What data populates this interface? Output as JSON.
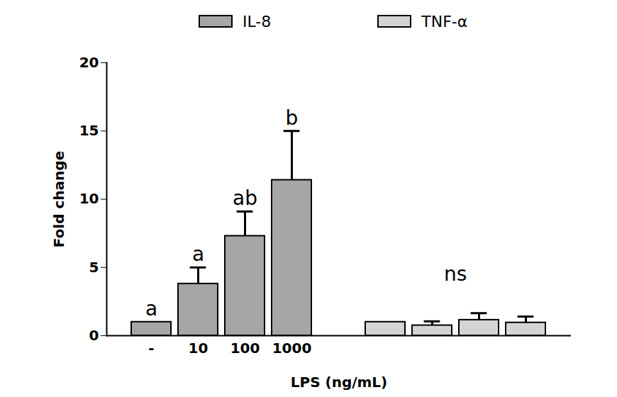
{
  "chart_data": {
    "type": "bar",
    "x_label": "LPS (ng/mL)",
    "y_label": "Fold change",
    "categories": [
      "-",
      "10",
      "100",
      "1000"
    ],
    "series": [
      {
        "name": "IL-8",
        "color": "#a6a6a6",
        "values": [
          1.0,
          3.8,
          7.3,
          11.4
        ],
        "errors": [
          0,
          1.2,
          1.8,
          3.6
        ],
        "significance": [
          "a",
          "a",
          "ab",
          "b"
        ]
      },
      {
        "name": "TNF-α",
        "color": "#d4d4d4",
        "values": [
          1.0,
          0.75,
          1.15,
          0.95
        ],
        "errors": [
          0,
          0.3,
          0.5,
          0.45
        ],
        "significance_label": "ns"
      }
    ],
    "ylim": [
      0,
      20
    ],
    "yticks": [
      0,
      5,
      10,
      15,
      20
    ],
    "legend": "top"
  }
}
